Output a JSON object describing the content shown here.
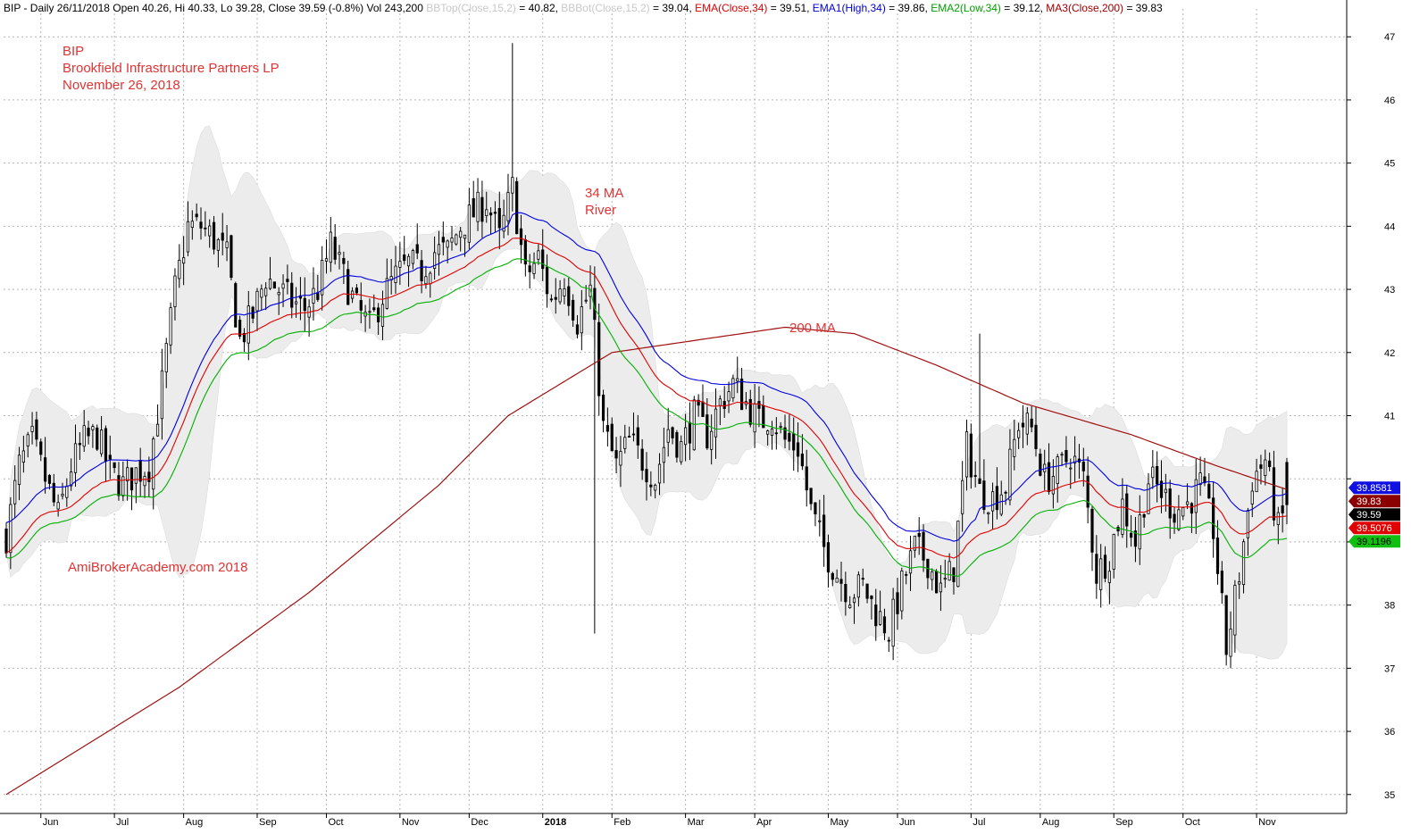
{
  "header": {
    "parts": [
      {
        "text": "BIP - Daily 26/11/2018 Open 40.26, Hi 40.33, Lo 39.28, Close 39.59 (-0.8%) Vol 243,200 ",
        "color": "#000000"
      },
      {
        "text": "BBTop(Close,15,2)",
        "color": "#c8c8c8"
      },
      {
        "text": " = 40.82, ",
        "color": "#000000"
      },
      {
        "text": "BBBot(Close,15,2)",
        "color": "#c8c8c8"
      },
      {
        "text": " = 39.04, ",
        "color": "#000000"
      },
      {
        "text": "EMA(Close,34)",
        "color": "#e00000"
      },
      {
        "text": " = 39.51, ",
        "color": "#000000"
      },
      {
        "text": "EMA1(High,34)",
        "color": "#0000e0"
      },
      {
        "text": " = 39.86, ",
        "color": "#000000"
      },
      {
        "text": "EMA2(Low,34)",
        "color": "#00a000"
      },
      {
        "text": " = 39.12, ",
        "color": "#000000"
      },
      {
        "text": "MA3(Close,200)",
        "color": "#a00000"
      },
      {
        "text": " = 39.83",
        "color": "#000000"
      }
    ]
  },
  "annotations": {
    "ticker": "BIP",
    "company": "Brookfield Infrastructure Partners LP",
    "date": "November 26, 2018",
    "river_line1": "34 MA",
    "river_line2": "River",
    "ma200": "200 MA",
    "watermark": "AmiBrokerAcademy.com  2018"
  },
  "colors": {
    "ema_close": "#e00000",
    "ema_high": "#0000e0",
    "ema_low": "#00b000",
    "ma200": "#a01010",
    "bands": "#ececec",
    "candle": "#000000",
    "annotation": "#e03434"
  },
  "badges": [
    {
      "text": "39.8581",
      "bg": "#1010e0",
      "fg": "#ffffff",
      "value": 39.8581
    },
    {
      "text": "39.83",
      "bg": "#8b0000",
      "fg": "#ffffff",
      "value": 39.83
    },
    {
      "text": "39.59",
      "bg": "#000000",
      "fg": "#ffffff",
      "value": 39.59
    },
    {
      "text": "39.5076",
      "bg": "#e00000",
      "fg": "#ffffff",
      "value": 39.5076
    },
    {
      "text": "39.1196",
      "bg": "#10c010",
      "fg": "#000000",
      "value": 39.1196
    }
  ],
  "chart_data": {
    "type": "candlestick",
    "ylim": [
      34.7,
      47.3
    ],
    "y_ticks": [
      47,
      46,
      45,
      44,
      43,
      42,
      41,
      40,
      39,
      38,
      37,
      36,
      35
    ],
    "y_tick_labels": [
      "47",
      "46",
      "45",
      "44",
      "43",
      "42",
      "41",
      "",
      "39",
      "38",
      "37",
      "36",
      "35"
    ],
    "grid": true,
    "x_months": [
      {
        "label": "Jun",
        "bold": false
      },
      {
        "label": "Jul",
        "bold": false
      },
      {
        "label": "Aug",
        "bold": false
      },
      {
        "label": "Sep",
        "bold": false
      },
      {
        "label": "Oct",
        "bold": false
      },
      {
        "label": "Nov",
        "bold": false
      },
      {
        "label": "Dec",
        "bold": false
      },
      {
        "label": "2018",
        "bold": true
      },
      {
        "label": "Feb",
        "bold": false
      },
      {
        "label": "Mar",
        "bold": false
      },
      {
        "label": "Apr",
        "bold": false
      },
      {
        "label": "May",
        "bold": false
      },
      {
        "label": "Jun",
        "bold": false
      },
      {
        "label": "Jul",
        "bold": false
      },
      {
        "label": "Aug",
        "bold": false
      },
      {
        "label": "Sep",
        "bold": false
      },
      {
        "label": "Oct",
        "bold": false
      },
      {
        "label": "Nov",
        "bold": false
      }
    ],
    "close_path": [
      [
        0,
        39.1
      ],
      [
        3,
        40.2
      ],
      [
        6,
        40.6
      ],
      [
        9,
        40.0
      ],
      [
        12,
        39.4
      ],
      [
        15,
        40.2
      ],
      [
        18,
        40.6
      ],
      [
        21,
        40.7
      ],
      [
        24,
        40.1
      ],
      [
        27,
        39.9
      ],
      [
        30,
        40.1
      ],
      [
        33,
        40.2
      ],
      [
        36,
        41.5
      ],
      [
        39,
        43.0
      ],
      [
        42,
        44.0
      ],
      [
        45,
        44.0
      ],
      [
        48,
        43.8
      ],
      [
        51,
        43.5
      ],
      [
        54,
        42.2
      ],
      [
        57,
        42.6
      ],
      [
        60,
        43.2
      ],
      [
        63,
        43.0
      ],
      [
        66,
        42.8
      ],
      [
        69,
        42.7
      ],
      [
        72,
        43.0
      ],
      [
        75,
        43.7
      ],
      [
        78,
        43.2
      ],
      [
        81,
        42.7
      ],
      [
        84,
        42.4
      ],
      [
        87,
        42.9
      ],
      [
        90,
        43.2
      ],
      [
        93,
        43.4
      ],
      [
        96,
        43.3
      ],
      [
        99,
        43.6
      ],
      [
        102,
        43.6
      ],
      [
        105,
        44.0
      ],
      [
        108,
        44.2
      ],
      [
        111,
        44.4
      ],
      [
        114,
        43.8
      ],
      [
        117,
        44.6
      ],
      [
        120,
        43.2
      ],
      [
        123,
        43.5
      ],
      [
        126,
        42.8
      ],
      [
        129,
        43.2
      ],
      [
        132,
        42.5
      ],
      [
        135,
        43.0
      ],
      [
        138,
        40.8
      ],
      [
        141,
        40.2
      ],
      [
        144,
        40.6
      ],
      [
        147,
        40.3
      ],
      [
        150,
        40.0
      ],
      [
        153,
        40.8
      ],
      [
        156,
        40.5
      ],
      [
        159,
        41.0
      ],
      [
        162,
        40.7
      ],
      [
        165,
        41.2
      ],
      [
        168,
        41.5
      ],
      [
        171,
        41.2
      ],
      [
        174,
        40.9
      ],
      [
        177,
        41.0
      ],
      [
        180,
        40.6
      ],
      [
        183,
        40.5
      ],
      [
        186,
        39.5
      ],
      [
        189,
        38.9
      ],
      [
        192,
        38.5
      ],
      [
        195,
        38.2
      ],
      [
        198,
        38.3
      ],
      [
        201,
        37.9
      ],
      [
        204,
        37.6
      ],
      [
        207,
        38.3
      ],
      [
        210,
        38.9
      ],
      [
        213,
        38.7
      ],
      [
        216,
        38.2
      ],
      [
        219,
        38.6
      ],
      [
        222,
        40.5
      ],
      [
        225,
        39.8
      ],
      [
        228,
        39.7
      ],
      [
        231,
        39.9
      ],
      [
        234,
        40.9
      ],
      [
        237,
        40.8
      ],
      [
        240,
        40.0
      ],
      [
        243,
        40.1
      ],
      [
        246,
        40.4
      ],
      [
        249,
        40.0
      ],
      [
        252,
        38.5
      ],
      [
        255,
        38.8
      ],
      [
        258,
        39.6
      ],
      [
        261,
        39.0
      ],
      [
        264,
        40.0
      ],
      [
        267,
        39.8
      ],
      [
        270,
        39.5
      ],
      [
        273,
        39.6
      ],
      [
        276,
        39.9
      ],
      [
        279,
        39.2
      ],
      [
        282,
        37.3
      ],
      [
        285,
        38.5
      ],
      [
        288,
        40.0
      ],
      [
        291,
        40.3
      ],
      [
        294,
        39.2
      ],
      [
        296,
        39.59
      ]
    ]
  }
}
